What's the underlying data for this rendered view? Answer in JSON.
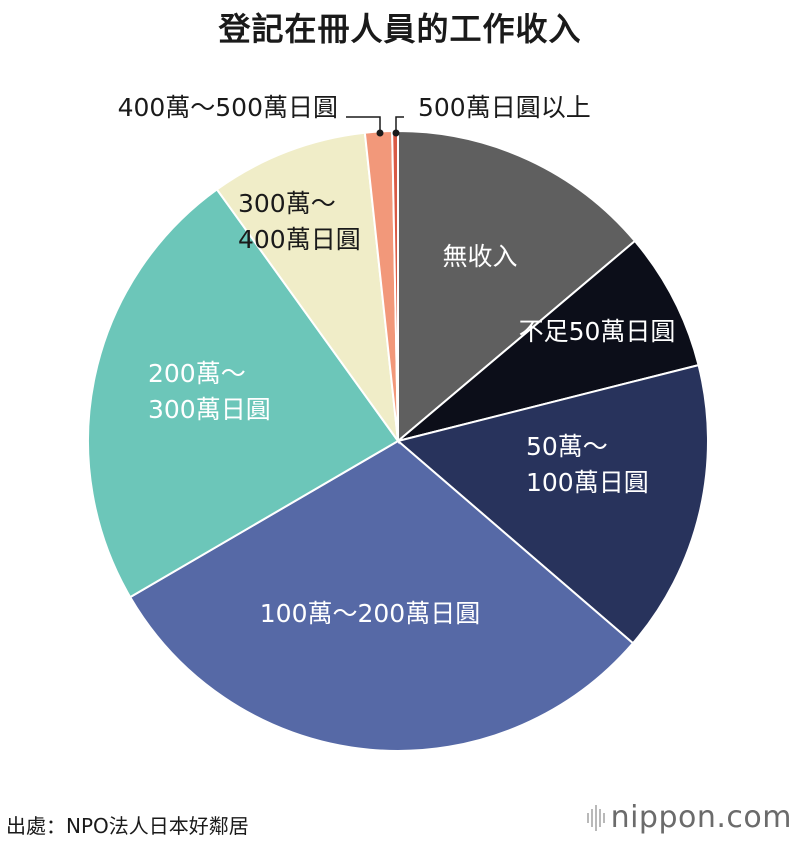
{
  "chart_data": {
    "type": "pie",
    "title": "登記在冊人員的工作收入",
    "slices": [
      {
        "label": "無收入",
        "lines": [
          "無收入"
        ],
        "value": 13.8,
        "color": "#5f5f5f",
        "text_color": "#ffffff"
      },
      {
        "label": "不足50萬日圓",
        "lines": [
          "不足50萬日圓"
        ],
        "value": 7.2,
        "color": "#0c0e19",
        "text_color": "#ffffff"
      },
      {
        "label": "50萬～100萬日圓",
        "lines": [
          "50萬～",
          "100萬日圓"
        ],
        "value": 15.2,
        "color": "#28335c",
        "text_color": "#ffffff"
      },
      {
        "label": "100萬～200萬日圓",
        "lines": [
          "100萬～200萬日圓"
        ],
        "value": 30.2,
        "color": "#5669a6",
        "text_color": "#ffffff"
      },
      {
        "label": "200萬～300萬日圓",
        "lines": [
          "200萬～",
          "300萬日圓"
        ],
        "value": 23.4,
        "color": "#6cc6b9",
        "text_color": "#ffffff"
      },
      {
        "label": "300萬～400萬日圓",
        "lines": [
          "300萬～",
          "400萬日圓"
        ],
        "value": 8.2,
        "color": "#f0edc8",
        "text_color": "#1a1a1a"
      },
      {
        "label": "400萬～500萬日圓",
        "lines": [
          "400萬～500萬日圓"
        ],
        "value": 1.4,
        "color": "#f2987a",
        "text_color": "#1a1a1a"
      },
      {
        "label": "500萬日圓以上",
        "lines": [
          "500萬日圓以上"
        ],
        "value": 0.3,
        "color": "#d95a45",
        "text_color": "#1a1a1a"
      }
    ]
  },
  "footer": {
    "source": "出處：NPO法人日本好鄰居",
    "brand": "nippon.com"
  }
}
